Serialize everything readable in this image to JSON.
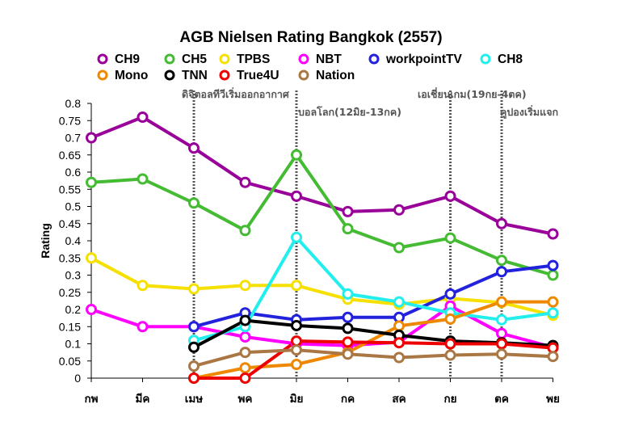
{
  "chart_data": {
    "type": "line",
    "title": "AGB Nielsen Rating Bangkok (2557)",
    "ylabel": "Rating",
    "xlabel": "",
    "ylim": [
      0,
      0.8
    ],
    "yticks": [
      "0",
      "0.05",
      "0.1",
      "0.15",
      "0.2",
      "0.25",
      "0.3",
      "0.35",
      "0.4",
      "0.45",
      "0.5",
      "0.55",
      "0.6",
      "0.65",
      "0.7",
      "0.75",
      "0.8"
    ],
    "categories": [
      "กพ",
      "มีค",
      "เมษ",
      "พค",
      "มิย",
      "กค",
      "สค",
      "กย",
      "ตค",
      "พย"
    ],
    "grid": false,
    "legend_position": "top",
    "series": [
      {
        "name": "CH9",
        "color": "#990099",
        "values": [
          0.7,
          0.76,
          0.67,
          0.57,
          0.53,
          0.485,
          0.49,
          0.53,
          0.45,
          0.42
        ]
      },
      {
        "name": "CH5",
        "color": "#44bb33",
        "values": [
          0.57,
          0.58,
          0.51,
          0.43,
          0.65,
          0.435,
          0.38,
          0.408,
          0.343,
          0.3
        ]
      },
      {
        "name": "TPBS",
        "color": "#f5e000",
        "values": [
          0.35,
          0.27,
          0.26,
          0.27,
          0.27,
          0.23,
          0.215,
          0.232,
          0.22,
          0.183
        ]
      },
      {
        "name": "NBT",
        "color": "#ff00ff",
        "values": [
          0.2,
          0.15,
          0.15,
          0.12,
          0.1,
          0.095,
          0.105,
          0.21,
          0.13,
          0.09
        ]
      },
      {
        "name": "workpointTV",
        "color": "#2222dd",
        "values": [
          null,
          null,
          0.15,
          0.19,
          0.17,
          0.177,
          0.177,
          0.245,
          0.31,
          0.328
        ]
      },
      {
        "name": "CH8",
        "color": "#22eeee",
        "values": [
          null,
          null,
          0.11,
          0.15,
          0.41,
          0.245,
          0.222,
          0.19,
          0.17,
          0.19
        ]
      },
      {
        "name": "Mono",
        "color": "#ee8800",
        "values": [
          null,
          null,
          0.0,
          0.03,
          0.04,
          0.075,
          0.152,
          0.172,
          0.222,
          0.222
        ]
      },
      {
        "name": "TNN",
        "color": "#000000",
        "values": [
          null,
          null,
          0.09,
          0.168,
          0.153,
          0.145,
          0.125,
          0.108,
          0.103,
          0.095
        ]
      },
      {
        "name": "True4U",
        "color": "#ee0000",
        "values": [
          null,
          null,
          0.0,
          0.0,
          0.108,
          0.105,
          0.103,
          0.1,
          0.1,
          0.088
        ]
      },
      {
        "name": "Nation",
        "color": "#aa7744",
        "values": [
          null,
          null,
          0.035,
          0.075,
          0.082,
          0.07,
          0.06,
          0.067,
          0.07,
          0.063
        ]
      }
    ],
    "annotations": [
      {
        "text": "ดิจิตอลทีวีเริ่มออกอากาศ",
        "at": 2
      },
      {
        "text": "บอลโลก(12มิย-13กค)",
        "at": 4
      },
      {
        "text": "เอเชี่ยนเกม(19กย-4ตค)",
        "at": 7
      },
      {
        "text": "คูปองเริ่มแจก",
        "at": 8
      }
    ]
  }
}
